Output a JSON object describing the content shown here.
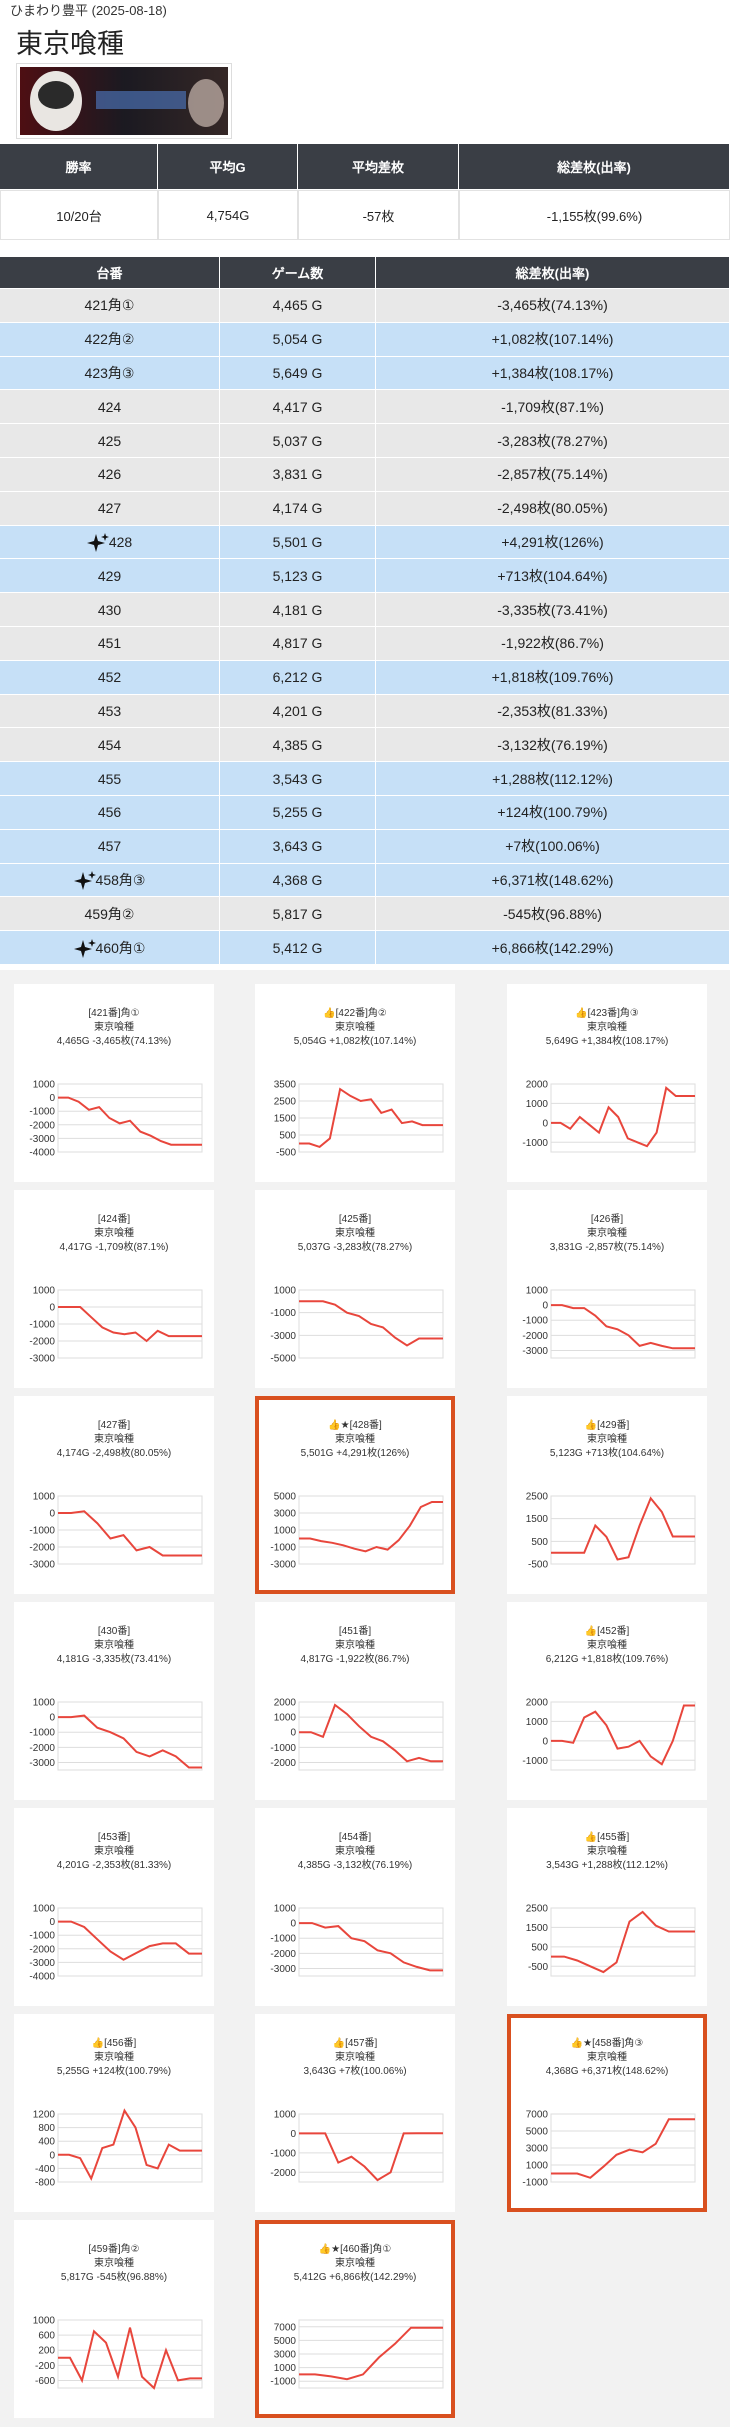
{
  "header": {
    "shop": "ひまわり豊平 (2025-08-18)",
    "title": "東京喰種"
  },
  "summary": {
    "headers": [
      "勝率",
      "平均G",
      "平均差枚",
      "総差枚(出率)"
    ],
    "row": [
      "10/20台",
      "4,754G",
      "-57枚",
      "-1,155枚(99.6%)"
    ]
  },
  "machines": {
    "headers": [
      "台番",
      "ゲーム数",
      "総差枚(出率)"
    ],
    "rows": [
      {
        "number": "421角①",
        "games": "4,465 G",
        "diff": "-3,465枚(74.13%)"
      },
      {
        "number": "422角②",
        "games": "5,054 G",
        "diff": "+1,082枚(107.14%)"
      },
      {
        "number": "423角③",
        "games": "5,649 G",
        "diff": "+1,384枚(108.17%)"
      },
      {
        "number": "424",
        "games": "4,417 G",
        "diff": "-1,709枚(87.1%)"
      },
      {
        "number": "425",
        "games": "5,037 G",
        "diff": "-3,283枚(78.27%)"
      },
      {
        "number": "426",
        "games": "3,831 G",
        "diff": "-2,857枚(75.14%)"
      },
      {
        "number": "427",
        "games": "4,174 G",
        "diff": "-2,498枚(80.05%)"
      },
      {
        "number": "428",
        "games": "5,501 G",
        "diff": "+4,291枚(126%)",
        "featured": true
      },
      {
        "number": "429",
        "games": "5,123 G",
        "diff": "+713枚(104.64%)"
      },
      {
        "number": "430",
        "games": "4,181 G",
        "diff": "-3,335枚(73.41%)"
      },
      {
        "number": "451",
        "games": "4,817 G",
        "diff": "-1,922枚(86.7%)"
      },
      {
        "number": "452",
        "games": "6,212 G",
        "diff": "+1,818枚(109.76%)"
      },
      {
        "number": "453",
        "games": "4,201 G",
        "diff": "-2,353枚(81.33%)"
      },
      {
        "number": "454",
        "games": "4,385 G",
        "diff": "-3,132枚(76.19%)"
      },
      {
        "number": "455",
        "games": "3,543 G",
        "diff": "+1,288枚(112.12%)"
      },
      {
        "number": "456",
        "games": "5,255 G",
        "diff": "+124枚(100.79%)"
      },
      {
        "number": "457",
        "games": "3,643 G",
        "diff": "+7枚(100.06%)"
      },
      {
        "number": "458角③",
        "games": "4,368 G",
        "diff": "+6,371枚(148.62%)",
        "featured": true
      },
      {
        "number": "459角②",
        "games": "5,817 G",
        "diff": "-545枚(96.88%)"
      },
      {
        "number": "460角①",
        "games": "5,412 G",
        "diff": "+6,866枚(142.29%)",
        "featured": true
      }
    ]
  },
  "graphs": [
    {
      "lines": [
        "[421番]角①",
        "東京喰種",
        "4,465G -3,465枚(74.13%)"
      ],
      "ylim": [
        -4000,
        1000
      ],
      "yticks": [
        1000,
        0,
        -1000,
        -2000,
        -3000,
        -4000
      ],
      "values": [
        0,
        0,
        -300,
        -900,
        -700,
        -1500,
        -1900,
        -1700,
        -2500,
        -2800,
        -3200,
        -3465,
        -3465,
        -3465,
        -3465
      ]
    },
    {
      "lines": [
        "👍[422番]角②",
        "東京喰種",
        "5,054G +1,082枚(107.14%)"
      ],
      "ylim": [
        -500,
        3500
      ],
      "yticks": [
        3500,
        2500,
        1500,
        500,
        -500
      ],
      "values": [
        0,
        0,
        -200,
        300,
        3200,
        2800,
        2500,
        2600,
        1800,
        2000,
        1200,
        1300,
        1082,
        1082,
        1082
      ]
    },
    {
      "lines": [
        "👍[423番]角③",
        "東京喰種",
        "5,649G +1,384枚(108.17%)"
      ],
      "ylim": [
        -1500,
        2000
      ],
      "yticks": [
        2000,
        1000,
        0,
        -1000
      ],
      "values": [
        0,
        0,
        -300,
        300,
        -100,
        -500,
        800,
        300,
        -800,
        -1000,
        -1200,
        -500,
        1800,
        1384,
        1384,
        1384
      ]
    },
    {
      "lines": [
        "[424番]",
        "東京喰種",
        "4,417G -1,709枚(87.1%)"
      ],
      "ylim": [
        -3000,
        1000
      ],
      "yticks": [
        1000,
        0,
        -1000,
        -2000,
        -3000
      ],
      "values": [
        0,
        0,
        0,
        -600,
        -1200,
        -1500,
        -1600,
        -1500,
        -2000,
        -1400,
        -1709,
        -1709,
        -1709,
        -1709
      ]
    },
    {
      "lines": [
        "[425番]",
        "東京喰種",
        "5,037G -3,283枚(78.27%)"
      ],
      "ylim": [
        -5000,
        1000
      ],
      "yticks": [
        1000,
        -1000,
        -3000,
        -5000
      ],
      "values": [
        0,
        0,
        0,
        -300,
        -1000,
        -1300,
        -2000,
        -2300,
        -3200,
        -3900,
        -3283,
        -3283,
        -3283
      ]
    },
    {
      "lines": [
        "[426番]",
        "東京喰種",
        "3,831G -2,857枚(75.14%)"
      ],
      "ylim": [
        -3500,
        1000
      ],
      "yticks": [
        1000,
        0,
        -1000,
        -2000,
        -3000
      ],
      "values": [
        0,
        0,
        -200,
        -200,
        -700,
        -1400,
        -1600,
        -2000,
        -2700,
        -2500,
        -2700,
        -2857,
        -2857,
        -2857
      ]
    },
    {
      "lines": [
        "[427番]",
        "東京喰種",
        "4,174G -2,498枚(80.05%)"
      ],
      "ylim": [
        -3000,
        1000
      ],
      "yticks": [
        1000,
        0,
        -1000,
        -2000,
        -3000
      ],
      "values": [
        0,
        0,
        100,
        -600,
        -1500,
        -1300,
        -2200,
        -2000,
        -2498,
        -2498,
        -2498,
        -2498
      ]
    },
    {
      "lines": [
        "👍★[428番]",
        "東京喰種",
        "5,501G +4,291枚(126%)"
      ],
      "ylim": [
        -3000,
        5000
      ],
      "yticks": [
        5000,
        3000,
        1000,
        -1000,
        -3000
      ],
      "values": [
        0,
        0,
        -300,
        -500,
        -800,
        -1200,
        -1500,
        -1000,
        -1300,
        -200,
        1500,
        3700,
        4291,
        4291
      ],
      "highlight": true
    },
    {
      "lines": [
        "👍[429番]",
        "東京喰種",
        "5,123G +713枚(104.64%)"
      ],
      "ylim": [
        -500,
        2500
      ],
      "yticks": [
        2500,
        1500,
        500,
        -500
      ],
      "values": [
        0,
        0,
        0,
        0,
        1200,
        700,
        -300,
        -200,
        1200,
        2400,
        1800,
        713,
        713,
        713
      ]
    },
    {
      "lines": [
        "[430番]",
        "東京喰種",
        "4,181G -3,335枚(73.41%)"
      ],
      "ylim": [
        -3500,
        1000
      ],
      "yticks": [
        1000,
        0,
        -1000,
        -2000,
        -3000
      ],
      "values": [
        0,
        0,
        100,
        -700,
        -1000,
        -1400,
        -2300,
        -2600,
        -2200,
        -2600,
        -3335,
        -3335
      ]
    },
    {
      "lines": [
        "[451番]",
        "東京喰種",
        "4,817G -1,922枚(86.7%)"
      ],
      "ylim": [
        -2500,
        2000
      ],
      "yticks": [
        2000,
        1000,
        0,
        -1000,
        -2000
      ],
      "values": [
        0,
        0,
        -300,
        1800,
        1200,
        400,
        -300,
        -600,
        -1200,
        -1922,
        -1700,
        -1922,
        -1922
      ]
    },
    {
      "lines": [
        "👍[452番]",
        "東京喰種",
        "6,212G +1,818枚(109.76%)"
      ],
      "ylim": [
        -1500,
        2000
      ],
      "yticks": [
        2000,
        1000,
        0,
        -1000
      ],
      "values": [
        0,
        0,
        -100,
        1200,
        1500,
        800,
        -400,
        -300,
        0,
        -800,
        -1200,
        0,
        1818,
        1818
      ]
    },
    {
      "lines": [
        "[453番]",
        "東京喰種",
        "4,201G -2,353枚(81.33%)"
      ],
      "ylim": [
        -4000,
        1000
      ],
      "yticks": [
        1000,
        0,
        -1000,
        -2000,
        -3000,
        -4000
      ],
      "values": [
        0,
        0,
        -400,
        -1300,
        -2200,
        -2800,
        -2300,
        -1800,
        -1600,
        -1600,
        -2353,
        -2353
      ]
    },
    {
      "lines": [
        "[454番]",
        "東京喰種",
        "4,385G -3,132枚(76.19%)"
      ],
      "ylim": [
        -3500,
        1000
      ],
      "yticks": [
        1000,
        0,
        -1000,
        -2000,
        -3000
      ],
      "values": [
        0,
        0,
        -300,
        -200,
        -1000,
        -1200,
        -1800,
        -2000,
        -2600,
        -2900,
        -3132,
        -3132
      ]
    },
    {
      "lines": [
        "👍[455番]",
        "東京喰種",
        "3,543G +1,288枚(112.12%)"
      ],
      "ylim": [
        -1000,
        2500
      ],
      "yticks": [
        2500,
        1500,
        500,
        -500
      ],
      "values": [
        0,
        0,
        -200,
        -500,
        -800,
        -300,
        1800,
        2300,
        1600,
        1288,
        1288,
        1288
      ]
    },
    {
      "lines": [
        "👍[456番]",
        "東京喰種",
        "5,255G +124枚(100.79%)"
      ],
      "ylim": [
        -800,
        1200
      ],
      "yticks": [
        1200,
        800,
        400,
        0,
        -400,
        -800
      ],
      "values": [
        0,
        0,
        -100,
        -700,
        200,
        300,
        1300,
        800,
        -300,
        -400,
        300,
        124,
        124,
        124
      ]
    },
    {
      "lines": [
        "👍[457番]",
        "東京喰種",
        "3,643G +7枚(100.06%)"
      ],
      "ylim": [
        -2500,
        1000
      ],
      "yticks": [
        1000,
        0,
        -1000,
        -2000
      ],
      "values": [
        0,
        0,
        0,
        -1500,
        -1200,
        -1700,
        -2400,
        -2000,
        0,
        7,
        7,
        7
      ]
    },
    {
      "lines": [
        "👍★[458番]角③",
        "東京喰種",
        "4,368G +6,371枚(148.62%)"
      ],
      "ylim": [
        -1000,
        7000
      ],
      "yticks": [
        7000,
        5000,
        3000,
        1000,
        -1000
      ],
      "values": [
        0,
        0,
        0,
        -500,
        800,
        2200,
        2800,
        2500,
        3500,
        6371,
        6371,
        6371
      ],
      "highlight": true
    },
    {
      "lines": [
        "[459番]角②",
        "東京喰種",
        "5,817G -545枚(96.88%)"
      ],
      "ylim": [
        -800,
        1000
      ],
      "yticks": [
        1000,
        600,
        200,
        -200,
        -600
      ],
      "values": [
        0,
        0,
        -600,
        700,
        400,
        -500,
        800,
        -500,
        -800,
        200,
        -600,
        -545,
        -545
      ]
    },
    {
      "lines": [
        "👍★[460番]角①",
        "東京喰種",
        "5,412G +6,866枚(142.29%)"
      ],
      "ylim": [
        -2000,
        8000
      ],
      "yticks": [
        7000,
        5000,
        3000,
        1000,
        -1000
      ],
      "values": [
        0,
        0,
        -300,
        -700,
        0,
        2500,
        4500,
        6866,
        6866,
        6866
      ],
      "highlight": true
    }
  ]
}
